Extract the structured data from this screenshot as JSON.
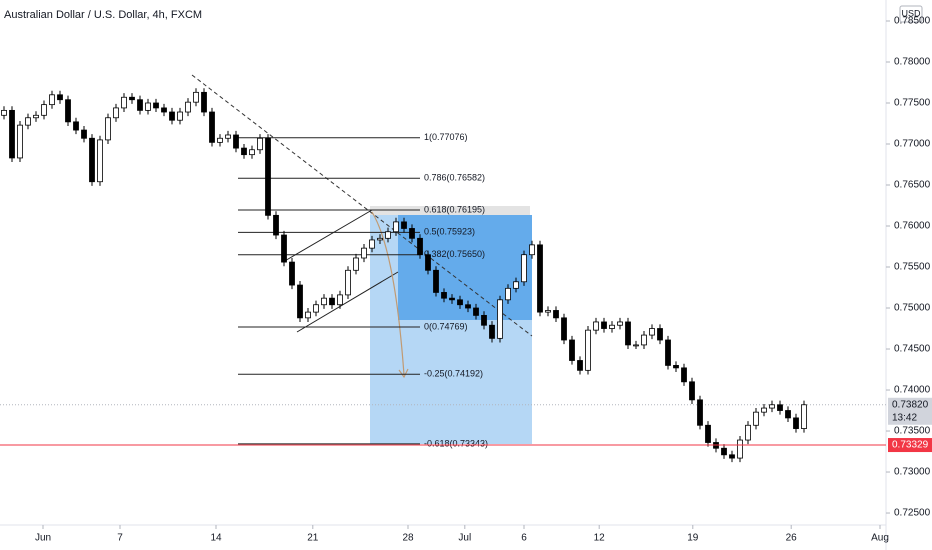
{
  "chart_data": {
    "type": "candlestick",
    "title": "Australian Dollar / U.S. Dollar, 4h, FXCM",
    "currency": "USD",
    "x": [
      0,
      1,
      2,
      3,
      4,
      5,
      6,
      7,
      8,
      9,
      10,
      11,
      12,
      13,
      14,
      15,
      16,
      17,
      18,
      19,
      20,
      21,
      22,
      23,
      24,
      25,
      26,
      27,
      28,
      29,
      30,
      31,
      32,
      33,
      34,
      35,
      36,
      37,
      38,
      39,
      40,
      41,
      42,
      43,
      44,
      45,
      46,
      47,
      48,
      49,
      50,
      51,
      52,
      53,
      54,
      55,
      56,
      57,
      58,
      59,
      60,
      61,
      62,
      63,
      64,
      65,
      66,
      67,
      68,
      69,
      70,
      71,
      72,
      73,
      74,
      75,
      76,
      77,
      78,
      79,
      80,
      81,
      82,
      83,
      84,
      85,
      86,
      87,
      88,
      89,
      90,
      91,
      92,
      93,
      94,
      95,
      96,
      97,
      98,
      99,
      100
    ],
    "open": [
      0.7735,
      0.7741,
      0.7683,
      0.7723,
      0.7732,
      0.7735,
      0.7748,
      0.776,
      0.7754,
      0.7727,
      0.7717,
      0.7707,
      0.7654,
      0.7705,
      0.7732,
      0.7744,
      0.7757,
      0.7754,
      0.7741,
      0.775,
      0.7744,
      0.7739,
      0.7729,
      0.7739,
      0.7751,
      0.7763,
      0.7739,
      0.7702,
      0.7707,
      0.7711,
      0.7695,
      0.7687,
      0.7693,
      0.7707,
      0.7613,
      0.7589,
      0.7556,
      0.7528,
      0.7488,
      0.7495,
      0.7504,
      0.7512,
      0.7504,
      0.7516,
      0.7546,
      0.7561,
      0.7573,
      0.7583,
      0.7585,
      0.7593,
      0.7605,
      0.7597,
      0.7585,
      0.7565,
      0.7546,
      0.7519,
      0.7512,
      0.751,
      0.7504,
      0.75,
      0.7491,
      0.7479,
      0.7463,
      0.751,
      0.7524,
      0.7532,
      0.7565,
      0.7577,
      0.7495,
      0.7497,
      0.7488,
      0.7461,
      0.7436,
      0.7424,
      0.7473,
      0.7483,
      0.7475,
      0.7479,
      0.7483,
      0.7455,
      0.7455,
      0.7467,
      0.7475,
      0.7461,
      0.743,
      0.7427,
      0.741,
      0.7388,
      0.7357,
      0.7336,
      0.7329,
      0.7321,
      0.7317,
      0.7339,
      0.7357,
      0.7373,
      0.7378,
      0.7382,
      0.7375,
      0.7366,
      0.7353
    ],
    "high": [
      0.7746,
      0.7746,
      0.7728,
      0.7737,
      0.774,
      0.7753,
      0.7765,
      0.7765,
      0.7759,
      0.7732,
      0.7722,
      0.7712,
      0.771,
      0.7737,
      0.7749,
      0.7762,
      0.7762,
      0.7759,
      0.7755,
      0.7755,
      0.7749,
      0.7744,
      0.7744,
      0.7756,
      0.7768,
      0.7768,
      0.7744,
      0.7712,
      0.7716,
      0.7716,
      0.77,
      0.7698,
      0.7712,
      0.7712,
      0.7618,
      0.7594,
      0.7561,
      0.7533,
      0.75,
      0.7509,
      0.7517,
      0.7517,
      0.7521,
      0.7551,
      0.7566,
      0.7578,
      0.7588,
      0.759,
      0.7598,
      0.761,
      0.761,
      0.7602,
      0.759,
      0.757,
      0.7551,
      0.7524,
      0.7517,
      0.7515,
      0.7509,
      0.7505,
      0.7496,
      0.7484,
      0.7515,
      0.7529,
      0.7537,
      0.757,
      0.7582,
      0.7582,
      0.7502,
      0.7502,
      0.7493,
      0.7466,
      0.7441,
      0.7478,
      0.7488,
      0.7488,
      0.7484,
      0.7488,
      0.7488,
      0.746,
      0.7472,
      0.748,
      0.748,
      0.7466,
      0.7435,
      0.7432,
      0.7415,
      0.7393,
      0.7362,
      0.7341,
      0.7334,
      0.7326,
      0.7344,
      0.7362,
      0.7378,
      0.7383,
      0.7387,
      0.7387,
      0.738,
      0.7371,
      0.7387
    ],
    "low": [
      0.773,
      0.7678,
      0.7678,
      0.7718,
      0.7727,
      0.773,
      0.7743,
      0.7749,
      0.7722,
      0.7712,
      0.7702,
      0.7649,
      0.7649,
      0.77,
      0.7727,
      0.7739,
      0.7749,
      0.7736,
      0.7736,
      0.7739,
      0.7734,
      0.7724,
      0.7724,
      0.7734,
      0.7746,
      0.7734,
      0.7697,
      0.7697,
      0.7702,
      0.769,
      0.7682,
      0.7682,
      0.7688,
      0.7608,
      0.7584,
      0.7551,
      0.7523,
      0.7483,
      0.7483,
      0.749,
      0.7499,
      0.7499,
      0.7499,
      0.7511,
      0.7541,
      0.7556,
      0.7568,
      0.7578,
      0.758,
      0.7588,
      0.7592,
      0.758,
      0.756,
      0.7541,
      0.7514,
      0.7507,
      0.7505,
      0.7499,
      0.7495,
      0.7486,
      0.7474,
      0.7458,
      0.7458,
      0.7505,
      0.7519,
      0.7527,
      0.756,
      0.749,
      0.749,
      0.7483,
      0.7456,
      0.7431,
      0.7419,
      0.7419,
      0.7468,
      0.747,
      0.747,
      0.7474,
      0.745,
      0.745,
      0.745,
      0.7462,
      0.7456,
      0.7425,
      0.7422,
      0.7405,
      0.7383,
      0.7352,
      0.7331,
      0.7324,
      0.7316,
      0.7312,
      0.7312,
      0.7334,
      0.7352,
      0.7368,
      0.7373,
      0.737,
      0.7361,
      0.7348,
      0.7348
    ],
    "close": [
      0.7741,
      0.7683,
      0.7723,
      0.7732,
      0.7735,
      0.7748,
      0.776,
      0.7754,
      0.7727,
      0.7717,
      0.7707,
      0.7654,
      0.7705,
      0.7732,
      0.7744,
      0.7757,
      0.7754,
      0.7741,
      0.775,
      0.7744,
      0.7739,
      0.7729,
      0.7739,
      0.7751,
      0.7763,
      0.7739,
      0.7702,
      0.7707,
      0.7711,
      0.7695,
      0.7687,
      0.7693,
      0.7707,
      0.7613,
      0.7589,
      0.7556,
      0.7528,
      0.7488,
      0.7495,
      0.7504,
      0.7512,
      0.7504,
      0.7516,
      0.7546,
      0.7561,
      0.7573,
      0.7583,
      0.7585,
      0.7593,
      0.7605,
      0.7597,
      0.7585,
      0.7565,
      0.7546,
      0.7519,
      0.7512,
      0.751,
      0.7504,
      0.75,
      0.7491,
      0.7479,
      0.7463,
      0.751,
      0.7524,
      0.7532,
      0.7565,
      0.7577,
      0.7495,
      0.7497,
      0.7488,
      0.7461,
      0.7436,
      0.7424,
      0.7473,
      0.7483,
      0.7475,
      0.7479,
      0.7483,
      0.7455,
      0.7455,
      0.7467,
      0.7475,
      0.7461,
      0.743,
      0.7427,
      0.741,
      0.7388,
      0.7357,
      0.7336,
      0.7329,
      0.7321,
      0.7317,
      0.7339,
      0.7357,
      0.7373,
      0.7378,
      0.7382,
      0.7375,
      0.7366,
      0.7353,
      0.7382
    ],
    "up_color": "#ffffff",
    "down_color": "#000000",
    "wick_color": "#000000",
    "xlim": [
      -0.5,
      109.5
    ],
    "xticks": [
      {
        "value": 4.875,
        "label": "Jun"
      },
      {
        "value": 14.5,
        "label": "7"
      },
      {
        "value": 26.5,
        "label": "14"
      },
      {
        "value": 38.6,
        "label": "21"
      },
      {
        "value": 50.5,
        "label": "28"
      },
      {
        "value": 57.6,
        "label": "Jul"
      },
      {
        "value": 65,
        "label": "6"
      },
      {
        "value": 74.4,
        "label": "12"
      },
      {
        "value": 86.1,
        "label": "19"
      },
      {
        "value": 98.4,
        "label": "26"
      },
      {
        "value": 109.5,
        "label": "Aug"
      }
    ],
    "ylim": [
      0.72354,
      0.78756
    ],
    "yticks": [
      {
        "value": 0.725,
        "label": "0.72500"
      },
      {
        "value": 0.73,
        "label": "0.73000"
      },
      {
        "value": 0.735,
        "label": "0.73500"
      },
      {
        "value": 0.74,
        "label": "0.74000"
      },
      {
        "value": 0.745,
        "label": "0.74500"
      },
      {
        "value": 0.75,
        "label": "0.75000"
      },
      {
        "value": 0.755,
        "label": "0.75500"
      },
      {
        "value": 0.76,
        "label": "0.76000"
      },
      {
        "value": 0.765,
        "label": "0.76500"
      },
      {
        "value": 0.77,
        "label": "0.77000"
      },
      {
        "value": 0.775,
        "label": "0.77500"
      },
      {
        "value": 0.78,
        "label": "0.78000"
      },
      {
        "value": 0.785,
        "label": "0.78500"
      }
    ],
    "grid": false,
    "last_price": {
      "value": 0.7382,
      "label": "0.73820",
      "countdown": "13:42",
      "color": "#d1d4dc"
    },
    "alert_line": {
      "value": 0.73329,
      "label": "0.73329",
      "color": "#f23645"
    },
    "fib_levels": [
      {
        "label": "1(0.77076)",
        "value": 0.77076
      },
      {
        "label": "0.786(0.76582)",
        "value": 0.76582
      },
      {
        "label": "0.618(0.76195)",
        "value": 0.76195
      },
      {
        "label": "0.5(0.75923)",
        "value": 0.75923
      },
      {
        "label": "0.382(0.75650)",
        "value": 0.7565
      },
      {
        "label": "0(0.74769)",
        "value": 0.74769
      },
      {
        "label": "-0.25(0.74192)",
        "value": 0.74192
      },
      {
        "label": "-0.618(0.73343)",
        "value": 0.73343
      }
    ]
  }
}
